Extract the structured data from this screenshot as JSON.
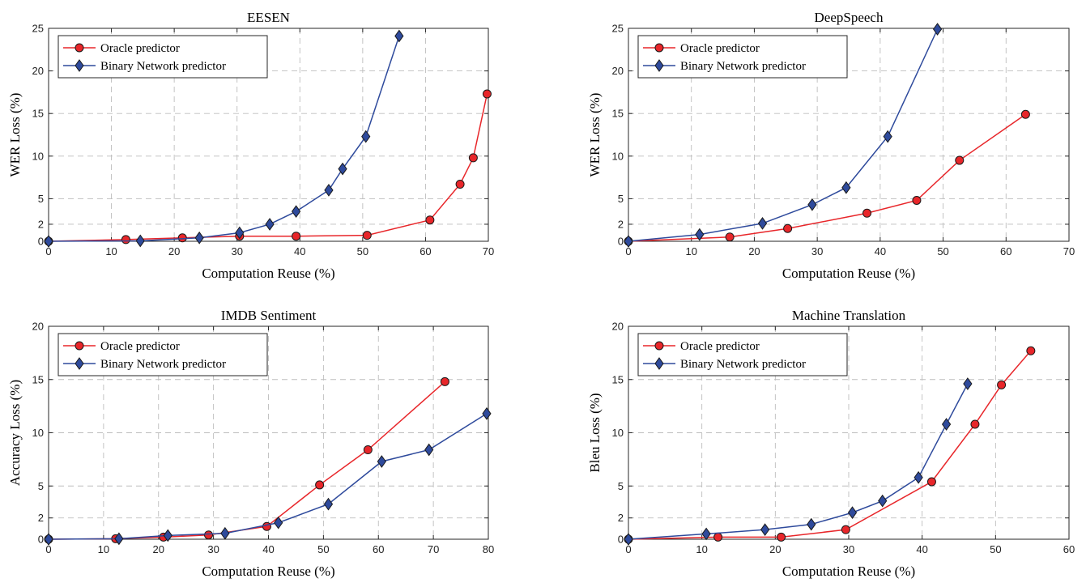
{
  "chart_data": [
    {
      "type": "line",
      "title": "EESEN",
      "xlabel": "Computation Reuse (%)",
      "ylabel": "WER Loss (%)",
      "xlim": [
        0,
        70
      ],
      "ylim": [
        0,
        25
      ],
      "xticks": [
        0,
        10,
        20,
        30,
        40,
        50,
        60,
        70
      ],
      "yticks": [
        0,
        2,
        5,
        10,
        15,
        20,
        25
      ],
      "grid": true,
      "legend_position": "top-left",
      "series": [
        {
          "name": "Oracle predictor",
          "color": "#e8262a",
          "marker": "circle",
          "x": [
            0,
            12.3,
            21.3,
            30.4,
            39.4,
            50.7,
            60.7,
            65.5,
            67.6,
            69.8
          ],
          "y": [
            0,
            0.2,
            0.4,
            0.6,
            0.6,
            0.7,
            2.5,
            6.7,
            9.8,
            17.3
          ]
        },
        {
          "name": "Binary Network predictor",
          "color": "#2e4a9c",
          "marker": "diamond",
          "x": [
            0,
            14.6,
            24.0,
            30.4,
            35.2,
            39.4,
            44.6,
            46.8,
            50.5,
            55.8
          ],
          "y": [
            0,
            0.05,
            0.4,
            1.0,
            2.0,
            3.5,
            6.0,
            8.5,
            12.3,
            24.1
          ]
        }
      ]
    },
    {
      "type": "line",
      "title": "DeepSpeech",
      "xlabel": "Computation Reuse (%)",
      "ylabel": "WER Loss (%)",
      "xlim": [
        0,
        70
      ],
      "ylim": [
        0,
        25
      ],
      "xticks": [
        0,
        10,
        20,
        30,
        40,
        50,
        60,
        70
      ],
      "yticks": [
        0,
        2,
        5,
        10,
        15,
        20,
        25
      ],
      "grid": true,
      "legend_position": "top-left",
      "series": [
        {
          "name": "Oracle predictor",
          "color": "#e8262a",
          "marker": "circle",
          "x": [
            0,
            16.1,
            25.3,
            37.9,
            45.8,
            52.6,
            63.1
          ],
          "y": [
            0,
            0.5,
            1.5,
            3.3,
            4.8,
            9.5,
            14.9
          ]
        },
        {
          "name": "Binary Network predictor",
          "color": "#2e4a9c",
          "marker": "diamond",
          "x": [
            0,
            11.3,
            21.3,
            29.2,
            34.6,
            41.2,
            49.1
          ],
          "y": [
            0,
            0.8,
            2.1,
            4.3,
            6.3,
            12.3,
            24.9
          ]
        }
      ]
    },
    {
      "type": "line",
      "title": "IMDB Sentiment",
      "xlabel": "Computation Reuse (%)",
      "ylabel": "Accuracy Loss (%)",
      "xlim": [
        0,
        80
      ],
      "ylim": [
        0,
        20
      ],
      "xticks": [
        0,
        10,
        20,
        30,
        40,
        50,
        60,
        70,
        80
      ],
      "yticks": [
        0,
        2,
        5,
        10,
        15,
        20
      ],
      "grid": true,
      "legend_position": "top-left",
      "series": [
        {
          "name": "Oracle predictor",
          "color": "#e8262a",
          "marker": "circle",
          "x": [
            0,
            12.2,
            20.9,
            29.1,
            39.7,
            49.3,
            58.1,
            72.1
          ],
          "y": [
            0,
            0.05,
            0.2,
            0.4,
            1.2,
            5.1,
            8.4,
            14.8
          ]
        },
        {
          "name": "Binary Network predictor",
          "color": "#2e4a9c",
          "marker": "diamond",
          "x": [
            0,
            12.8,
            21.7,
            32.1,
            41.8,
            50.9,
            60.6,
            69.2,
            79.7
          ],
          "y": [
            0,
            0.05,
            0.35,
            0.55,
            1.55,
            3.3,
            7.3,
            8.4,
            11.8
          ]
        }
      ]
    },
    {
      "type": "line",
      "title": "Machine Translation",
      "xlabel": "Computation Reuse (%)",
      "ylabel": "Bleu Loss (%)",
      "xlim": [
        0,
        60
      ],
      "ylim": [
        0,
        20
      ],
      "xticks": [
        0,
        10,
        20,
        30,
        40,
        50,
        60
      ],
      "yticks": [
        0,
        2,
        5,
        10,
        15,
        20
      ],
      "grid": true,
      "legend_position": "top-left",
      "series": [
        {
          "name": "Oracle predictor",
          "color": "#e8262a",
          "marker": "circle",
          "x": [
            0,
            12.2,
            20.8,
            29.6,
            41.3,
            47.2,
            50.8,
            54.8
          ],
          "y": [
            0,
            0.2,
            0.2,
            0.9,
            5.4,
            10.8,
            14.5,
            17.7
          ]
        },
        {
          "name": "Binary Network predictor",
          "color": "#2e4a9c",
          "marker": "diamond",
          "x": [
            0,
            10.6,
            18.6,
            24.9,
            30.5,
            34.6,
            39.5,
            43.3,
            46.2
          ],
          "y": [
            0,
            0.5,
            0.9,
            1.4,
            2.5,
            3.6,
            5.8,
            10.8,
            14.6
          ]
        }
      ]
    }
  ]
}
